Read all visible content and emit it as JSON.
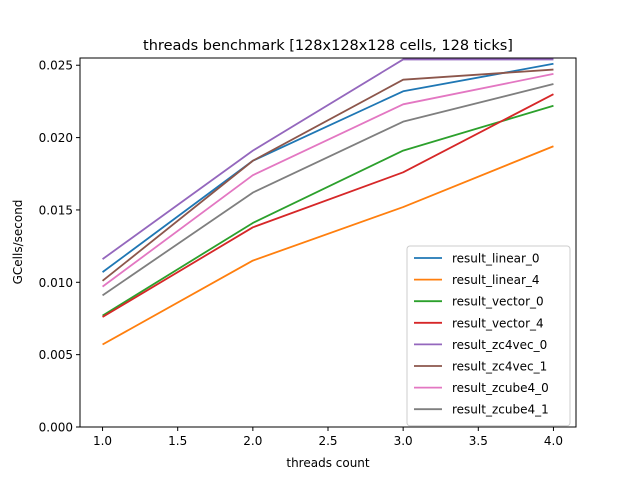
{
  "chart_data": {
    "type": "line",
    "title": "threads benchmark [128x128x128 cells, 128 ticks]",
    "xlabel": "threads count",
    "ylabel": "GCells/second",
    "xlim": [
      0.85,
      4.15
    ],
    "ylim": [
      0.0,
      0.0255
    ],
    "xticks": [
      1.0,
      1.5,
      2.0,
      2.5,
      3.0,
      3.5,
      4.0
    ],
    "xtick_labels": [
      "1.0",
      "1.5",
      "2.0",
      "2.5",
      "3.0",
      "3.5",
      "4.0"
    ],
    "yticks": [
      0.0,
      0.005,
      0.01,
      0.015,
      0.02,
      0.025
    ],
    "ytick_labels": [
      "0.000",
      "0.005",
      "0.010",
      "0.015",
      "0.020",
      "0.025"
    ],
    "grid": false,
    "legend_position": "lower-right",
    "x": [
      1,
      2,
      3,
      4
    ],
    "series": [
      {
        "name": "result_linear_0",
        "color": "#1f77b4",
        "values": [
          0.0107,
          0.0184,
          0.0232,
          0.0251
        ]
      },
      {
        "name": "result_linear_4",
        "color": "#ff7f0e",
        "values": [
          0.0057,
          0.0115,
          0.0152,
          0.0194
        ]
      },
      {
        "name": "result_vector_0",
        "color": "#2ca02c",
        "values": [
          0.0077,
          0.0141,
          0.0191,
          0.0222
        ]
      },
      {
        "name": "result_vector_4",
        "color": "#d62728",
        "values": [
          0.0076,
          0.0138,
          0.0176,
          0.023
        ]
      },
      {
        "name": "result_zc4vec_0",
        "color": "#9467bd",
        "values": [
          0.0116,
          0.0191,
          0.0254,
          0.0254
        ]
      },
      {
        "name": "result_zc4vec_1",
        "color": "#8c564b",
        "values": [
          0.0101,
          0.0184,
          0.024,
          0.0247
        ]
      },
      {
        "name": "result_zcube4_0",
        "color": "#e377c2",
        "values": [
          0.0097,
          0.0174,
          0.0223,
          0.0244
        ]
      },
      {
        "name": "result_zcube4_1",
        "color": "#7f7f7f",
        "values": [
          0.0091,
          0.0162,
          0.0211,
          0.0237
        ]
      }
    ]
  }
}
